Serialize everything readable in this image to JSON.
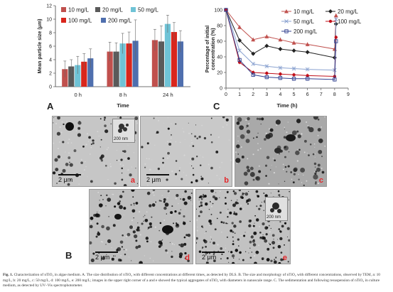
{
  "panel_a": {
    "letter": "A",
    "chart_data": {
      "type": "bar",
      "categories": [
        "0 h",
        "8 h",
        "24 h"
      ],
      "series": [
        {
          "name": "10 mg/L",
          "color": "#c0504d",
          "values": [
            2.6,
            5.2,
            6.9
          ],
          "errors": [
            1.2,
            1.4,
            1.6
          ]
        },
        {
          "name": "20 mg/L",
          "color": "#5a5a5a",
          "values": [
            3.0,
            5.2,
            6.7
          ],
          "errors": [
            1.0,
            1.3,
            2.3
          ]
        },
        {
          "name": "50 mg/L",
          "color": "#6fc3d6",
          "values": [
            3.2,
            6.4,
            9.3
          ],
          "errors": [
            1.3,
            1.5,
            1.3
          ]
        },
        {
          "name": "100 mg/L",
          "color": "#d9261c",
          "values": [
            3.7,
            6.4,
            8.1
          ],
          "errors": [
            1.2,
            1.7,
            1.4
          ]
        },
        {
          "name": "200 mg/L",
          "color": "#4f6fae",
          "values": [
            4.2,
            6.8,
            6.7
          ],
          "errors": [
            1.4,
            3.1,
            1.6
          ]
        }
      ],
      "ylabel": "Mean particle size  (μm)",
      "xlabel": "Time",
      "ylim": [
        0,
        12
      ],
      "yticks": [
        "0",
        "2",
        "4",
        "6",
        "8",
        "10",
        "12"
      ],
      "legend": "top-left"
    }
  },
  "panel_c": {
    "letter": "C",
    "chart_data": {
      "type": "line",
      "x": [
        0,
        1,
        2,
        3,
        4,
        5,
        6,
        8
      ],
      "series": [
        {
          "name": "10 mg/L",
          "color": "#c0504d",
          "marker": "triangle",
          "values": [
            100,
            78,
            62,
            66,
            62,
            58,
            56,
            50
          ],
          "final_x": 8.1,
          "final": 93
        },
        {
          "name": "20 mg/L",
          "color": "#222222",
          "marker": "diamond",
          "values": [
            100,
            61,
            44,
            54,
            50,
            48,
            46,
            39
          ],
          "final_x": 8.1,
          "final": 82
        },
        {
          "name": "50 mg/L",
          "color": "#8aa2d0",
          "marker": "x",
          "values": [
            100,
            48,
            31,
            28,
            26,
            25,
            24,
            23
          ],
          "final_x": 8.1,
          "final": 88
        },
        {
          "name": "100 mg/L",
          "color": "#c0101a",
          "marker": "circle",
          "values": [
            100,
            33,
            20,
            19,
            18,
            17,
            16,
            15
          ],
          "final_x": 8.1,
          "final": 65
        },
        {
          "name": "200 mg/L",
          "color": "#30408f",
          "marker": "square",
          "values": [
            100,
            36,
            17,
            14,
            13,
            12,
            12,
            11
          ],
          "final_x": 8.1,
          "final": 60
        }
      ],
      "xlabel": "Time (h)",
      "ylabel": "Percentage of initial concentration (%)",
      "xlim": [
        0,
        9
      ],
      "ylim": [
        0,
        100
      ],
      "xticks": [
        "0",
        "1",
        "2",
        "3",
        "4",
        "5",
        "6",
        "7",
        "8",
        "9"
      ],
      "yticks": [
        "0",
        "20",
        "40",
        "60",
        "80",
        "100"
      ],
      "legend": "top-right"
    }
  },
  "panel_b": {
    "letter": "B",
    "scale_label": "2 μm",
    "inset_label": "200 nm",
    "images": [
      {
        "letter": "a"
      },
      {
        "letter": "b"
      },
      {
        "letter": "c"
      },
      {
        "letter": "d"
      },
      {
        "letter": "e"
      }
    ]
  },
  "caption": {
    "bold_lead": "Fig. 1.",
    "text": " Characterization of nTiO₂ in algae medium. A. The size distribution of nTiO₂ with different concentrations at different times, as detected by DLS. B. The size and morphology of nTiO₂ with different concentrations, observed by TEM, a: 10 mg/L, b: 20 mg/L, c: 50 mg/L, d: 100 mg/L, e: 200 mg/L; images in the upper right corner of a and e showed the typical aggregates of nTiO₂ with diameters in nanoscale range. C. The sedimentation and following resuspension of nTiO₂ in culture medium, as detected by UV–Vis spectrophotometer."
  }
}
